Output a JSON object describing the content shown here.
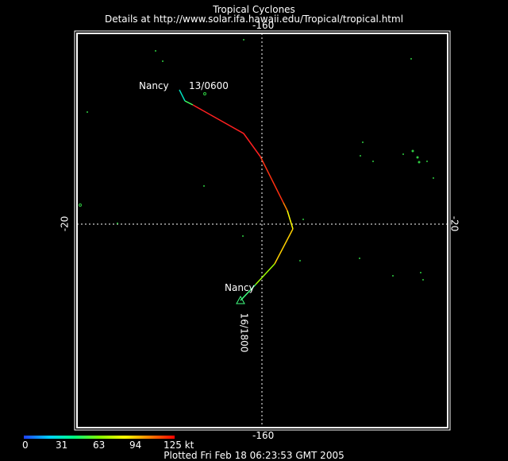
{
  "header": {
    "title": "Tropical Cyclones",
    "subtitle": "Details at http://www.solar.ifa.hawaii.edu/Tropical/tropical.html"
  },
  "axes": {
    "lon_top": "-160",
    "lon_bottom": "-160",
    "lat_left": "-20",
    "lat_right": "-20"
  },
  "storm": {
    "name_start": "Nancy",
    "time_start": "13/0600",
    "name_end": "Nancy",
    "time_end": "16/1800"
  },
  "colorbar": {
    "ticks": [
      "0",
      "31",
      "63",
      "94",
      "125 kt"
    ]
  },
  "footer": {
    "plotted": "Plotted Fri Feb 18 06:23:53 GMT 2005"
  }
}
